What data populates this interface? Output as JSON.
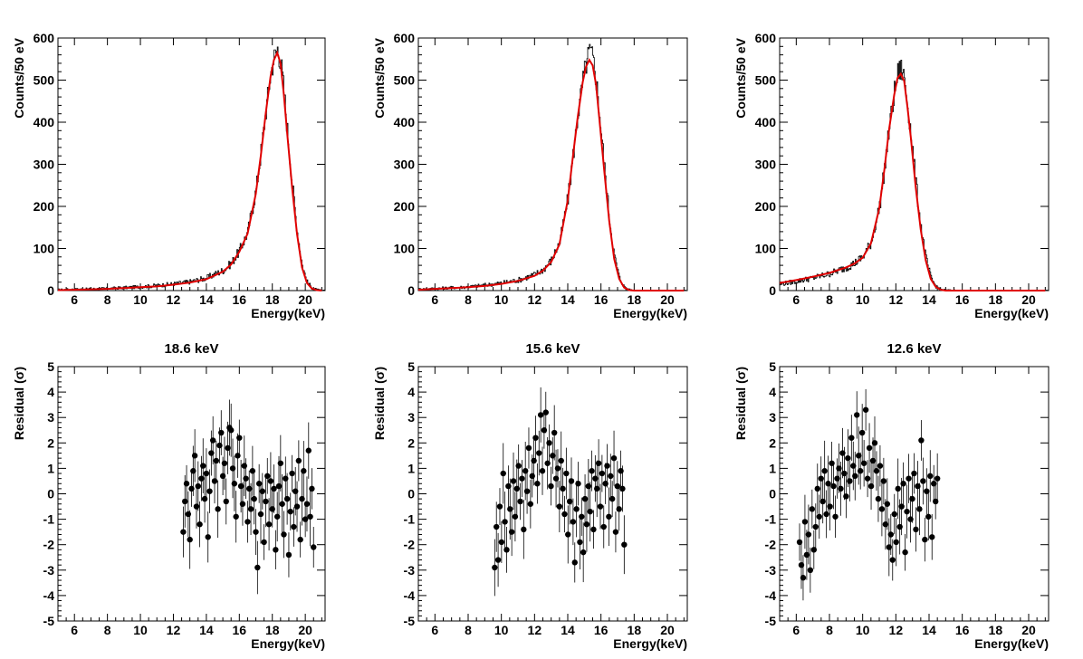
{
  "chart_data": [
    {
      "type": "line",
      "id": "spec-18",
      "xlabel": "Energy(keV)",
      "ylabel": "Counts/50 eV",
      "xlim": [
        5,
        21.2
      ],
      "ylim": [
        0,
        600
      ],
      "xticks": [
        6,
        8,
        10,
        12,
        14,
        16,
        18,
        20
      ],
      "yticks": [
        0,
        100,
        200,
        300,
        400,
        500,
        600
      ],
      "series": [
        {
          "name": "data",
          "style": "histogram",
          "x": [
            5,
            6,
            7,
            8,
            9,
            10,
            11,
            12,
            13,
            14,
            15,
            15.5,
            16,
            16.5,
            17,
            17.3,
            17.6,
            17.9,
            18.1,
            18.3,
            18.5,
            18.7,
            18.9,
            19.2,
            19.5,
            19.8,
            20.1,
            20.4,
            20.7,
            21
          ],
          "y": [
            2,
            3,
            4,
            5,
            7,
            9,
            12,
            16,
            21,
            30,
            48,
            65,
            95,
            140,
            240,
            330,
            430,
            520,
            555,
            575,
            545,
            470,
            380,
            250,
            140,
            60,
            20,
            6,
            2,
            0
          ]
        },
        {
          "name": "fit",
          "style": "line",
          "color": "#e00000",
          "x": [
            5,
            6,
            7,
            8,
            9,
            10,
            11,
            12,
            13,
            14,
            15,
            15.5,
            16,
            16.5,
            17,
            17.3,
            17.6,
            17.9,
            18.1,
            18.3,
            18.5,
            18.7,
            18.9,
            19.2,
            19.5,
            19.8,
            20.1,
            20.4,
            20.7,
            21
          ],
          "y": [
            1,
            2,
            3,
            4,
            6,
            8,
            10,
            14,
            19,
            27,
            45,
            62,
            92,
            135,
            230,
            320,
            420,
            510,
            548,
            565,
            540,
            465,
            375,
            245,
            135,
            55,
            18,
            5,
            1,
            0
          ]
        }
      ]
    },
    {
      "type": "line",
      "id": "spec-15",
      "xlabel": "Energy(keV)",
      "ylabel": "Counts/50 eV",
      "xlim": [
        5,
        21.2
      ],
      "ylim": [
        0,
        600
      ],
      "xticks": [
        6,
        8,
        10,
        12,
        14,
        16,
        18,
        20
      ],
      "yticks": [
        0,
        100,
        200,
        300,
        400,
        500,
        600
      ],
      "series": [
        {
          "name": "data",
          "style": "histogram",
          "x": [
            5,
            6,
            7,
            8,
            9,
            10,
            11,
            12,
            12.5,
            13,
            13.5,
            14,
            14.3,
            14.6,
            14.9,
            15.1,
            15.3,
            15.5,
            15.7,
            15.9,
            16.2,
            16.5,
            16.8,
            17.1,
            17.4,
            17.7,
            18,
            19,
            20,
            21
          ],
          "y": [
            3,
            5,
            7,
            9,
            13,
            18,
            25,
            38,
            50,
            72,
            115,
            220,
            320,
            420,
            500,
            540,
            570,
            550,
            500,
            420,
            290,
            170,
            80,
            30,
            8,
            2,
            0,
            0,
            0,
            0
          ]
        },
        {
          "name": "fit",
          "style": "line",
          "color": "#e00000",
          "x": [
            5,
            6,
            7,
            8,
            9,
            10,
            11,
            12,
            12.5,
            13,
            13.5,
            14,
            14.3,
            14.6,
            14.9,
            15.1,
            15.3,
            15.5,
            15.7,
            15.9,
            16.2,
            16.5,
            16.8,
            17.1,
            17.4,
            17.7,
            18,
            19,
            20,
            21
          ],
          "y": [
            2,
            4,
            6,
            8,
            11,
            16,
            23,
            35,
            47,
            68,
            110,
            215,
            315,
            412,
            495,
            532,
            548,
            535,
            490,
            410,
            285,
            165,
            75,
            28,
            7,
            1,
            0,
            0,
            0,
            0
          ]
        }
      ]
    },
    {
      "type": "line",
      "id": "spec-12",
      "xlabel": "Energy(keV)",
      "ylabel": "Counts/50 eV",
      "xlim": [
        5,
        21.2
      ],
      "ylim": [
        0,
        600
      ],
      "xticks": [
        6,
        8,
        10,
        12,
        14,
        16,
        18,
        20
      ],
      "yticks": [
        0,
        100,
        200,
        300,
        400,
        500,
        600
      ],
      "series": [
        {
          "name": "data",
          "style": "histogram",
          "x": [
            5,
            6,
            7,
            8,
            9,
            9.5,
            10,
            10.5,
            11,
            11.3,
            11.6,
            11.9,
            12.1,
            12.3,
            12.5,
            12.7,
            12.9,
            13.2,
            13.5,
            13.8,
            14.1,
            14.4,
            14.7,
            15,
            16,
            17,
            18,
            19,
            20,
            21
          ],
          "y": [
            15,
            22,
            30,
            40,
            55,
            65,
            80,
            115,
            200,
            290,
            390,
            470,
            515,
            525,
            505,
            440,
            370,
            250,
            150,
            75,
            30,
            10,
            3,
            1,
            0,
            0,
            0,
            0,
            0,
            0
          ]
        },
        {
          "name": "fit",
          "style": "line",
          "color": "#e00000",
          "x": [
            5,
            6,
            7,
            8,
            9,
            9.5,
            10,
            10.5,
            11,
            11.3,
            11.6,
            11.9,
            12.1,
            12.3,
            12.5,
            12.7,
            12.9,
            13.2,
            13.5,
            13.8,
            14.1,
            14.4,
            14.7,
            15,
            16,
            17,
            18,
            19,
            20,
            21
          ],
          "y": [
            18,
            25,
            33,
            42,
            55,
            64,
            78,
            112,
            195,
            285,
            385,
            465,
            505,
            515,
            498,
            435,
            365,
            245,
            145,
            72,
            28,
            9,
            2,
            0,
            0,
            0,
            0,
            0,
            0,
            0
          ]
        }
      ]
    },
    {
      "type": "scatter",
      "id": "res-18",
      "title": "18.6 keV",
      "xlabel": "Energy(keV)",
      "ylabel": "Residual (σ)",
      "xlim": [
        5,
        21.2
      ],
      "ylim": [
        -5,
        5
      ],
      "xticks": [
        6,
        8,
        10,
        12,
        14,
        16,
        18,
        20
      ],
      "yticks": [
        -5,
        -4,
        -3,
        -2,
        -1,
        0,
        1,
        2,
        3,
        4,
        5
      ],
      "x_range": [
        12.6,
        20.5
      ],
      "err": 1,
      "y": [
        -1.5,
        -0.3,
        0.4,
        -0.8,
        -1.8,
        0.2,
        0.9,
        1.5,
        -0.5,
        0.3,
        -1.2,
        0.6,
        1.1,
        -0.2,
        0.8,
        -1.7,
        0.1,
        1.6,
        2.1,
        0.5,
        1.3,
        -0.6,
        1.9,
        2.4,
        0.7,
        1.2,
        -0.3,
        1.8,
        2.6,
        2.5,
        1.0,
        0.4,
        -0.9,
        1.5,
        2.2,
        0.3,
        -0.4,
        1.1,
        0.6,
        -1.1,
        0.2,
        -0.6,
        0.9,
        -0.2,
        -1.5,
        -2.9,
        0.4,
        -0.8,
        0.1,
        -1.9,
        -0.3,
        0.7,
        -1.2,
        0.5,
        -0.6,
        0.2,
        -2.2,
        -0.9,
        0.3,
        1.2,
        -0.4,
        -1.6,
        0.6,
        -0.2,
        -2.4,
        -0.7,
        0.8,
        -1.3,
        0.1,
        -0.5,
        1.3,
        -1.8,
        -0.2,
        0.9,
        -1.0,
        -0.4,
        1.7,
        -0.9,
        0.2,
        -2.1
      ]
    },
    {
      "type": "scatter",
      "id": "res-15",
      "title": "15.6 keV",
      "xlabel": "Energy(keV)",
      "ylabel": "Residual (σ)",
      "xlim": [
        5,
        21.2
      ],
      "ylim": [
        -5,
        5
      ],
      "xticks": [
        6,
        8,
        10,
        12,
        14,
        16,
        18,
        20
      ],
      "yticks": [
        -5,
        -4,
        -3,
        -2,
        -1,
        0,
        1,
        2,
        3,
        4,
        5
      ],
      "x_range": [
        9.6,
        17.4
      ],
      "err": 1,
      "y": [
        -2.9,
        -1.3,
        -2.6,
        -0.5,
        -1.9,
        0.8,
        -1.1,
        -2.2,
        0.3,
        -0.6,
        -1.5,
        0.5,
        -0.9,
        0.2,
        1.1,
        -0.3,
        0.6,
        -1.4,
        0.9,
        0.1,
        1.8,
        -0.4,
        0.7,
        1.3,
        2.2,
        0.4,
        1.6,
        3.1,
        0.9,
        2.5,
        3.2,
        1.2,
        2.0,
        0.3,
        1.5,
        2.4,
        0.6,
        1.0,
        -0.5,
        1.3,
        0.2,
        -0.8,
        0.8,
        -1.6,
        -0.3,
        0.5,
        -1.1,
        -2.7,
        -0.6,
        0.4,
        -1.9,
        -0.9,
        -2.3,
        -0.2,
        -1.2,
        0.3,
        -0.7,
        0.9,
        -1.4,
        0.6,
        0.2,
        1.2,
        -0.5,
        0.8,
        -1.3,
        0.4,
        1.1,
        -0.9,
        0.7,
        -0.2,
        1.4,
        -1.5,
        0.3,
        -0.6,
        0.9,
        0.2,
        -2.0
      ]
    },
    {
      "type": "scatter",
      "id": "res-12",
      "title": "12.6 keV",
      "xlabel": "Energy(keV)",
      "ylabel": "Residual (σ)",
      "xlim": [
        5,
        21.2
      ],
      "ylim": [
        -5,
        5
      ],
      "xticks": [
        6,
        8,
        10,
        12,
        14,
        16,
        18,
        20
      ],
      "yticks": [
        -5,
        -4,
        -3,
        -2,
        -1,
        0,
        1,
        2,
        3,
        4,
        5
      ],
      "x_range": [
        6.2,
        14.5
      ],
      "err": 1,
      "y": [
        -1.9,
        -2.8,
        -3.3,
        -1.1,
        -2.4,
        -1.6,
        -3.0,
        -0.6,
        -2.2,
        -1.3,
        0.2,
        -0.9,
        0.6,
        -0.3,
        0.9,
        -0.8,
        0.4,
        -0.5,
        1.2,
        0.3,
        -0.9,
        0.6,
        1.0,
        0.2,
        1.6,
        0.8,
        -0.1,
        1.4,
        0.5,
        2.2,
        1.1,
        0.7,
        3.1,
        1.5,
        0.9,
        2.4,
        1.2,
        3.3,
        0.6,
        1.8,
        0.3,
        1.3,
        2.0,
        0.9,
        -0.2,
        1.1,
        -0.6,
        0.5,
        -1.2,
        -0.4,
        -2.1,
        -1.6,
        -2.6,
        -0.8,
        -1.9,
        0.2,
        -1.3,
        -0.5,
        0.4,
        -2.3,
        -0.7,
        0.6,
        -1.0,
        -0.2,
        0.8,
        -1.4,
        0.3,
        -0.6,
        2.1,
        0.5,
        -1.8,
        0.1,
        -0.9,
        0.7,
        -1.7,
        0.4,
        -0.3,
        0.6
      ]
    }
  ]
}
